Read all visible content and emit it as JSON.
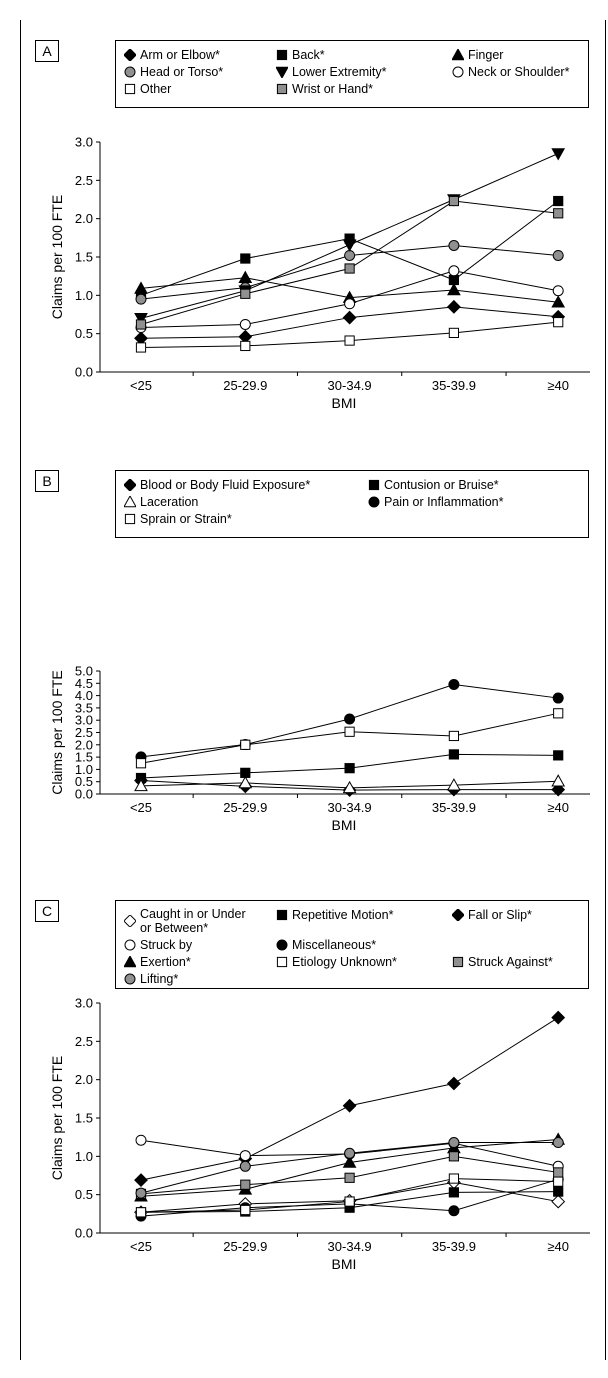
{
  "chart_data": [
    {
      "panel_label": "A",
      "type": "line",
      "xlabel": "BMI",
      "ylabel": "Claims per 100 FTE",
      "categories": [
        "<25",
        "25-29.9",
        "30-34.9",
        "35-39.9",
        "≥40"
      ],
      "ylim": [
        0,
        3.0
      ],
      "yticks": [
        "0.0",
        "0.5",
        "1.0",
        "1.5",
        "2.0",
        "2.5",
        "3.0"
      ],
      "series": [
        {
          "name": "Arm or Elbow*",
          "marker": "diamond-filled",
          "values": [
            0.44,
            0.46,
            0.71,
            0.85,
            0.72
          ]
        },
        {
          "name": "Back*",
          "marker": "square-filled",
          "values": [
            1.0,
            1.48,
            1.74,
            1.2,
            2.23
          ]
        },
        {
          "name": "Finger",
          "marker": "triangle-filled",
          "values": [
            1.09,
            1.23,
            0.97,
            1.07,
            0.91
          ]
        },
        {
          "name": "Head or Torso*",
          "marker": "circle-gray",
          "values": [
            0.95,
            1.1,
            1.52,
            1.65,
            1.52
          ]
        },
        {
          "name": "Lower Extremity*",
          "marker": "triangle-down-filled",
          "values": [
            0.7,
            1.06,
            1.66,
            2.25,
            2.85
          ]
        },
        {
          "name": "Neck or Shoulder*",
          "marker": "circle-open",
          "values": [
            0.58,
            0.62,
            0.89,
            1.32,
            1.06
          ]
        },
        {
          "name": "Other",
          "marker": "square-open",
          "values": [
            0.32,
            0.34,
            0.41,
            0.51,
            0.65
          ]
        },
        {
          "name": "Wrist or Hand*",
          "marker": "square-gray",
          "values": [
            0.62,
            1.02,
            1.35,
            2.23,
            2.07
          ]
        }
      ]
    },
    {
      "panel_label": "B",
      "type": "line",
      "xlabel": "BMI",
      "ylabel": "Claims per 100 FTE",
      "categories": [
        "<25",
        "25-29.9",
        "30-34.9",
        "35-39.9",
        "≥40"
      ],
      "ylim": [
        0,
        5.0
      ],
      "yticks": [
        "0.0",
        "0.5",
        "1.0",
        "1.5",
        "2.0",
        "2.5",
        "3.0",
        "3.5",
        "4.0",
        "4.5",
        "5.0"
      ],
      "series": [
        {
          "name": "Blood or Body Fluid Exposure*",
          "marker": "diamond-filled",
          "values": [
            0.55,
            0.31,
            0.16,
            0.18,
            0.18
          ]
        },
        {
          "name": "Contusion or Bruise*",
          "marker": "square-filled",
          "values": [
            0.65,
            0.86,
            1.05,
            1.61,
            1.57
          ]
        },
        {
          "name": "Laceration",
          "marker": "triangle-open",
          "values": [
            0.33,
            0.45,
            0.25,
            0.36,
            0.52
          ]
        },
        {
          "name": "Pain or Inflammation*",
          "marker": "circle-filled",
          "values": [
            1.51,
            2.01,
            3.05,
            4.45,
            3.9
          ]
        },
        {
          "name": "Sprain or Strain*",
          "marker": "square-open",
          "values": [
            1.25,
            2.0,
            2.53,
            2.36,
            3.28
          ]
        }
      ]
    },
    {
      "panel_label": "C",
      "type": "line",
      "xlabel": "BMI",
      "ylabel": "Claims per 100 FTE",
      "categories": [
        "<25",
        "25-29.9",
        "30-34.9",
        "35-39.9",
        "≥40"
      ],
      "ylim": [
        0,
        3.0
      ],
      "yticks": [
        "0.0",
        "0.5",
        "1.0",
        "1.5",
        "2.0",
        "2.5",
        "3.0"
      ],
      "series": [
        {
          "name": "Caught in or Under\nor Between*",
          "marker": "diamond-open",
          "values": [
            0.27,
            0.38,
            0.42,
            0.66,
            0.41
          ]
        },
        {
          "name": "Repetitive Motion*",
          "marker": "square-filled",
          "values": [
            0.27,
            0.28,
            0.33,
            0.53,
            0.54
          ]
        },
        {
          "name": "Fall or Slip*",
          "marker": "diamond-filled",
          "values": [
            0.69,
            0.97,
            1.66,
            1.95,
            2.81
          ]
        },
        {
          "name": "Struck by",
          "marker": "circle-open",
          "values": [
            1.21,
            1.01,
            1.03,
            1.17,
            0.87
          ]
        },
        {
          "name": "Miscellaneous*",
          "marker": "circle-filled",
          "values": [
            0.22,
            0.33,
            0.38,
            0.29,
            0.7
          ]
        },
        {
          "name": "Exertion*",
          "marker": "triangle-filled",
          "values": [
            0.48,
            0.57,
            0.92,
            1.11,
            1.22
          ]
        },
        {
          "name": "Etiology Unknown*",
          "marker": "square-open",
          "values": [
            0.27,
            0.3,
            0.41,
            0.71,
            0.67
          ]
        },
        {
          "name": "Struck Against*",
          "marker": "square-gray",
          "values": [
            0.51,
            0.63,
            0.72,
            1.0,
            0.79
          ]
        },
        {
          "name": "Lifting*",
          "marker": "circle-gray",
          "values": [
            0.52,
            0.87,
            1.04,
            1.18,
            1.18
          ]
        }
      ]
    }
  ]
}
